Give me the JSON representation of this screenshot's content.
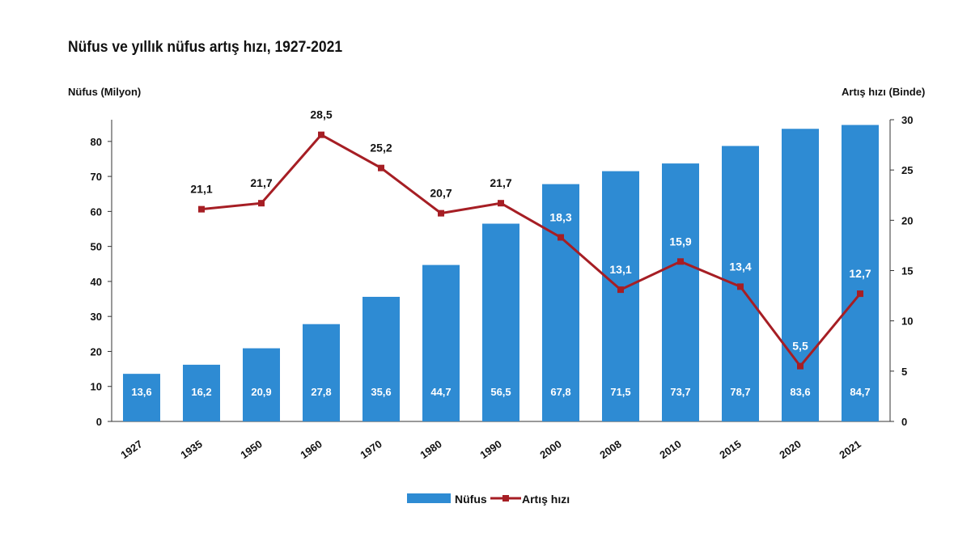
{
  "chart_data": {
    "type": "bar+line",
    "title": "Nüfus ve yıllık nüfus artış hızı, 1927-2021",
    "ylabel_left": "Nüfus (Milyon)",
    "ylabel_right": "Artış hızı (Binde)",
    "categories": [
      "1927",
      "1935",
      "1950",
      "1960",
      "1970",
      "1980",
      "1990",
      "2000",
      "2008",
      "2010",
      "2015",
      "2020",
      "2021"
    ],
    "series": [
      {
        "name": "Nüfus",
        "type": "bar",
        "axis": "left",
        "color": "#2e8bd3",
        "values": [
          13.6,
          16.2,
          20.9,
          27.8,
          35.6,
          44.7,
          56.5,
          67.8,
          71.5,
          73.7,
          78.7,
          83.6,
          84.7
        ],
        "labels": [
          "13,6",
          "16,2",
          "20,9",
          "27,8",
          "35,6",
          "44,7",
          "56,5",
          "67,8",
          "71,5",
          "73,7",
          "78,7",
          "83,6",
          "84,7"
        ]
      },
      {
        "name": "Artış hızı",
        "type": "line",
        "axis": "right",
        "color": "#a61e24",
        "values": [
          null,
          21.1,
          21.7,
          28.5,
          25.2,
          20.7,
          21.7,
          18.3,
          13.1,
          15.9,
          13.4,
          5.5,
          12.7
        ],
        "labels": [
          "",
          "21,1",
          "21,7",
          "28,5",
          "25,2",
          "20,7",
          "21,7",
          "18,3",
          "13,1",
          "15,9",
          "13,4",
          "5,5",
          "12,7"
        ]
      }
    ],
    "ylim_left": [
      0,
      86.2
    ],
    "yticks_left": [
      "0",
      "10",
      "20",
      "30",
      "40",
      "50",
      "60",
      "70",
      "80"
    ],
    "ylim_right": [
      0,
      30
    ],
    "yticks_right": [
      "0",
      "5",
      "10",
      "15",
      "20",
      "25",
      "30"
    ],
    "legend": "bottom",
    "grid": false
  }
}
